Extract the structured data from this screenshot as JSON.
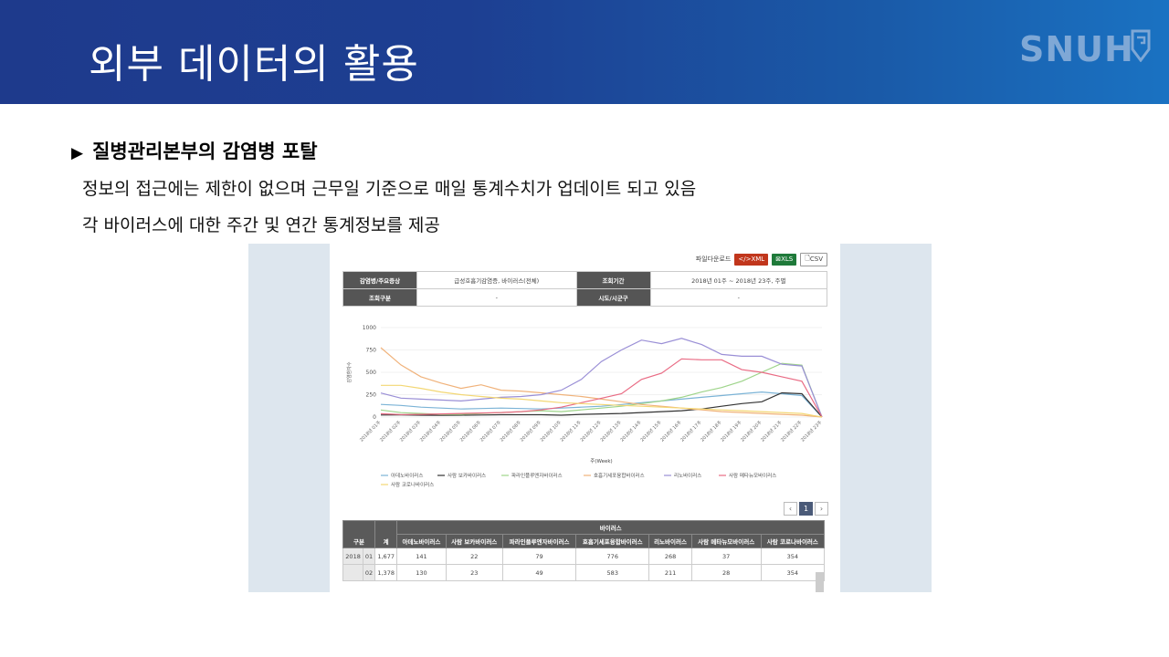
{
  "header": {
    "title": "외부 데이터의 활용",
    "logo_text": "SNUH"
  },
  "section": {
    "title": "질병관리본부의 감염병 포탈",
    "bullet_icon": "triangle-right-icon",
    "lines": [
      "정보의 접근에는 제한이 없으며 근무일 기준으로 매일 통계수치가 업데이트 되고 있음",
      "각 바이러스에 대한 주간 및 연간 통계정보를 제공"
    ]
  },
  "portal": {
    "download_label": "파일다운로드",
    "btn_xml": "XML",
    "btn_xls": "XLS",
    "btn_csv": "CSV",
    "filter": {
      "r1_label": "감염병/주요증상",
      "r1_value": "급성호흡기감염증, 바이러스(전체)",
      "r1_label2": "조회기간",
      "r1_value2": "2018년 01주 ~ 2018년 23주, 주별",
      "r2_label": "조회구분",
      "r2_value": "-",
      "r2_label2": "시도/시군구",
      "r2_value2": "-"
    },
    "page_current": "1",
    "table": {
      "group_header": "바이러스",
      "col_division": "구분",
      "col_total": "계",
      "virus_cols": [
        "아데노바이러스",
        "사람 보카바이러스",
        "파라인플루엔자바이러스",
        "호흡기세포융합바이러스",
        "리노바이러스",
        "사람 메타뉴모바이러스",
        "사람 코로나바이러스"
      ],
      "rows": [
        {
          "year": "2018",
          "week": "01",
          "total": "1,677",
          "vals": [
            "141",
            "22",
            "79",
            "776",
            "268",
            "37",
            "354"
          ]
        },
        {
          "year": "",
          "week": "02",
          "total": "1,378",
          "vals": [
            "130",
            "23",
            "49",
            "583",
            "211",
            "28",
            "354"
          ]
        }
      ]
    }
  },
  "chart_data": {
    "type": "line",
    "ylabel": "감염환자수",
    "xlabel": "주(Week)",
    "ylim": [
      0,
      1000
    ],
    "yticks": [
      0,
      250,
      500,
      750,
      1000
    ],
    "grid": true,
    "legend_position": "bottom",
    "categories": [
      "2018년 01주",
      "2018년 02주",
      "2018년 03주",
      "2018년 04주",
      "2018년 05주",
      "2018년 06주",
      "2018년 07주",
      "2018년 08주",
      "2018년 09주",
      "2018년 10주",
      "2018년 11주",
      "2018년 12주",
      "2018년 13주",
      "2018년 14주",
      "2018년 15주",
      "2018년 16주",
      "2018년 17주",
      "2018년 18주",
      "2018년 19주",
      "2018년 20주",
      "2018년 21주",
      "2018년 22주",
      "2018년 23주"
    ],
    "series": [
      {
        "name": "아데노바이러스",
        "color": "#7bb3d6",
        "values": [
          141,
          130,
          110,
          100,
          90,
          95,
          100,
          95,
          90,
          100,
          110,
          120,
          140,
          160,
          180,
          200,
          220,
          240,
          260,
          280,
          260,
          240,
          0
        ]
      },
      {
        "name": "사람 보카바이러스",
        "color": "#333333",
        "values": [
          22,
          23,
          20,
          18,
          20,
          22,
          25,
          25,
          25,
          20,
          30,
          35,
          40,
          50,
          60,
          70,
          90,
          120,
          150,
          170,
          270,
          260,
          0
        ]
      },
      {
        "name": "파라인플루엔자바이러스",
        "color": "#9ed48a",
        "values": [
          79,
          49,
          40,
          30,
          30,
          40,
          50,
          60,
          70,
          60,
          80,
          100,
          120,
          150,
          180,
          220,
          280,
          330,
          400,
          500,
          600,
          580,
          0
        ]
      },
      {
        "name": "호흡기세포융합바이러스",
        "color": "#f0b27a",
        "values": [
          776,
          583,
          450,
          380,
          320,
          360,
          300,
          290,
          270,
          250,
          230,
          200,
          170,
          140,
          120,
          100,
          80,
          60,
          50,
          40,
          30,
          20,
          0
        ]
      },
      {
        "name": "리노바이러스",
        "color": "#9a8fd6",
        "values": [
          268,
          211,
          200,
          190,
          180,
          200,
          220,
          230,
          250,
          300,
          420,
          620,
          750,
          860,
          820,
          880,
          810,
          700,
          680,
          680,
          590,
          570,
          0
        ]
      },
      {
        "name": "사람 메타뉴모바이러스",
        "color": "#e96b84",
        "values": [
          37,
          28,
          30,
          35,
          40,
          45,
          50,
          60,
          80,
          110,
          160,
          210,
          260,
          420,
          490,
          650,
          640,
          640,
          530,
          500,
          450,
          400,
          0
        ]
      },
      {
        "name": "사람 코로나바이러스",
        "color": "#f3d774",
        "values": [
          354,
          354,
          320,
          280,
          250,
          230,
          210,
          200,
          180,
          160,
          150,
          140,
          130,
          120,
          110,
          100,
          90,
          80,
          70,
          60,
          50,
          40,
          0
        ]
      }
    ]
  }
}
